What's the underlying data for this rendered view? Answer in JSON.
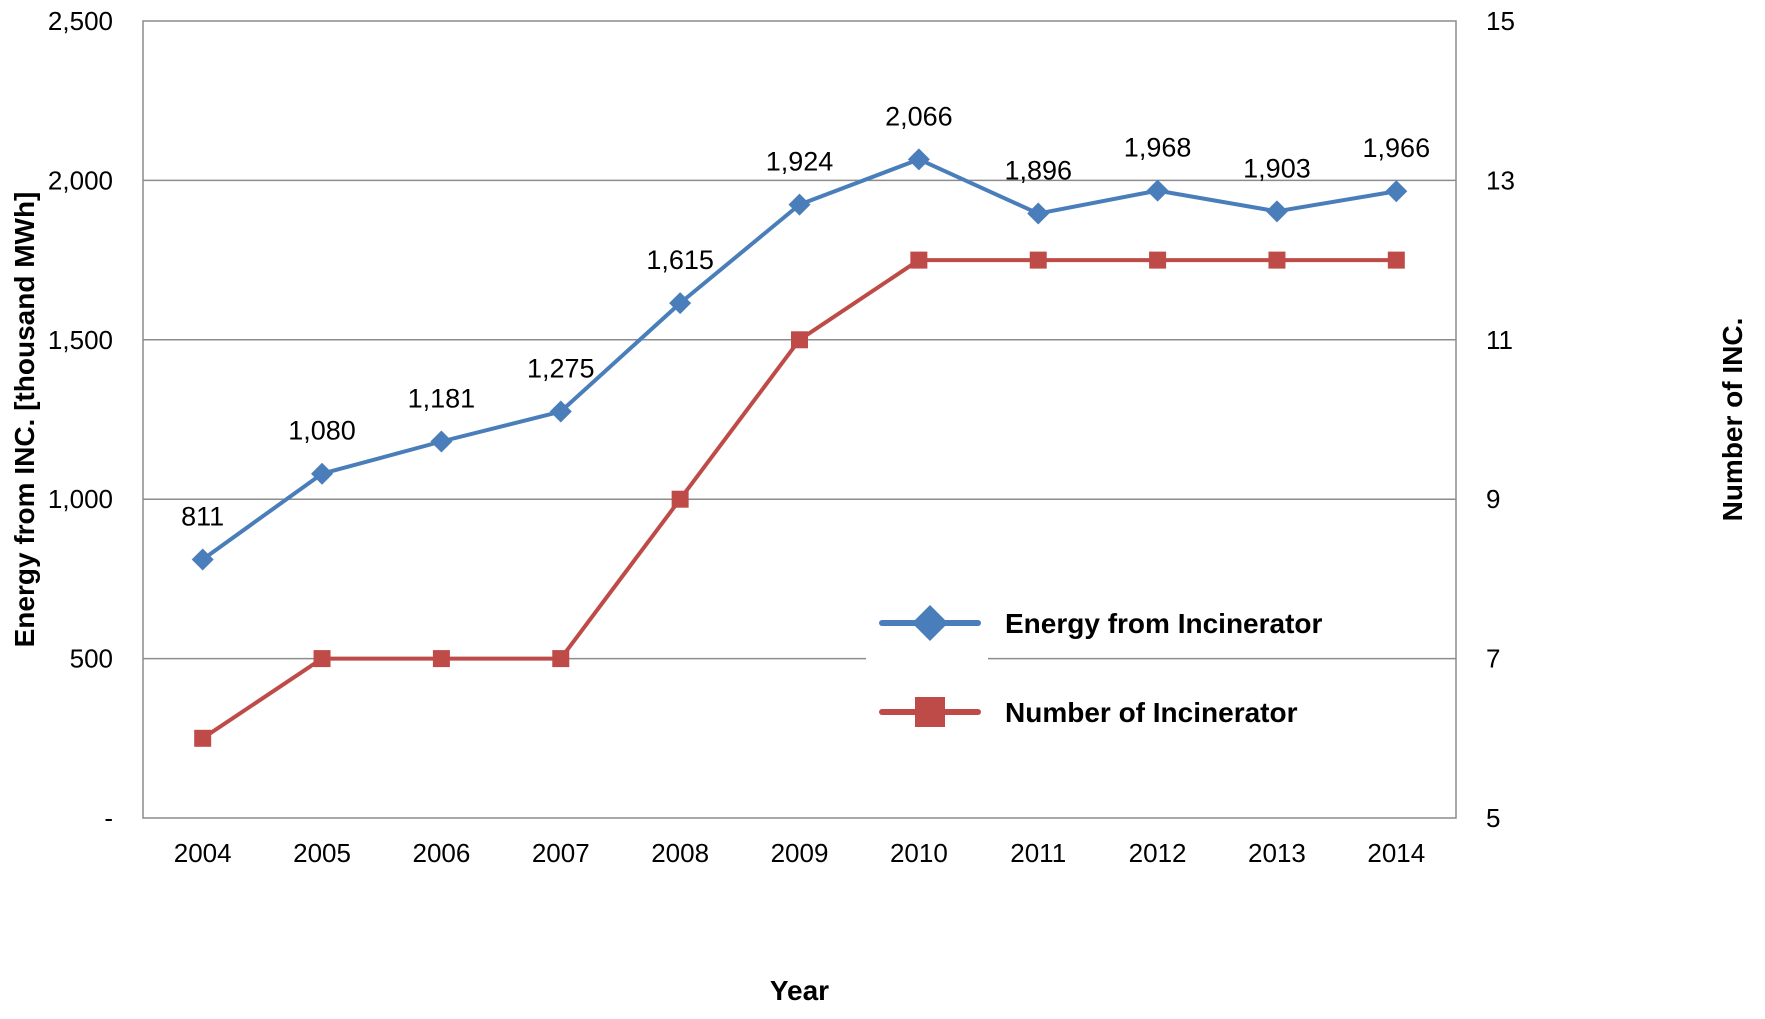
{
  "chart_data": {
    "type": "line",
    "title": "",
    "xlabel": "Year",
    "ylabel": "Energy from INC. [thousand MWh]",
    "y2label": "Number of INC.",
    "categories": [
      "2004",
      "2005",
      "2006",
      "2007",
      "2008",
      "2009",
      "2010",
      "2011",
      "2012",
      "2013",
      "2014"
    ],
    "ylim": [
      0,
      2500
    ],
    "y2lim": [
      5,
      15
    ],
    "y_ticks": [
      0,
      500,
      1000,
      1500,
      2000,
      2500
    ],
    "y_tick_labels": [
      "-",
      "500",
      "1,000",
      "1,500",
      "2,000",
      "2,500"
    ],
    "y2_ticks": [
      5,
      7,
      9,
      11,
      13,
      15
    ],
    "y2_tick_labels": [
      "5",
      "7",
      "9",
      "11",
      "13",
      "15"
    ],
    "grid": "horizontal",
    "legend_position": "lower-right",
    "series": [
      {
        "name": "Energy from Incinerator",
        "axis": "left",
        "color": "#4a7ebb",
        "marker": "diamond",
        "values": [
          811,
          1080,
          1181,
          1275,
          1615,
          1924,
          2066,
          1896,
          1968,
          1903,
          1966
        ],
        "data_labels": [
          "811",
          "1,080",
          "1,181",
          "1,275",
          "1,615",
          "1,924",
          "2,066",
          "1,896",
          "1,968",
          "1,903",
          "1,966"
        ]
      },
      {
        "name": "Number of Incinerator",
        "axis": "right",
        "color": "#be4b48",
        "marker": "square",
        "values": [
          6,
          7,
          7,
          7,
          9,
          11,
          12,
          12,
          12,
          12,
          12
        ]
      }
    ]
  }
}
